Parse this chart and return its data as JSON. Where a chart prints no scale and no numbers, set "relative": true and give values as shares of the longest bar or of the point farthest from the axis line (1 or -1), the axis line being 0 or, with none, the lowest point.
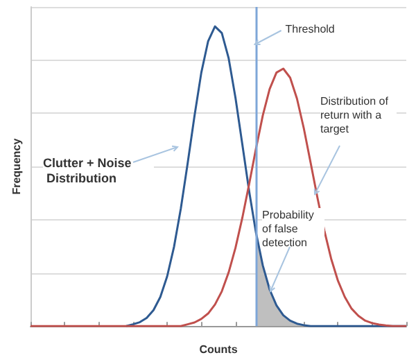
{
  "chart_data": {
    "type": "line",
    "relative": true,
    "xlabel": "Counts",
    "ylabel": "Frequency",
    "categories": [
      null,
      null,
      null,
      null,
      null,
      null,
      null,
      null,
      null,
      null,
      null,
      null,
      null,
      null,
      null,
      null,
      null,
      null,
      null,
      null,
      null,
      null,
      null,
      null,
      null,
      null,
      null,
      null,
      null,
      null,
      null,
      null,
      null,
      null,
      null,
      null,
      null,
      null,
      null,
      null,
      null,
      null,
      null,
      null,
      null,
      null,
      null,
      null,
      null,
      null,
      null,
      null,
      null,
      null,
      null,
      null
    ],
    "series": [
      {
        "color": "#2e5a91",
        "values": [
          null,
          null,
          null,
          null,
          null,
          null,
          null,
          null,
          null,
          null,
          null,
          null,
          null,
          null,
          0,
          0.006,
          0.013,
          0.027,
          0.053,
          0.097,
          0.166,
          0.264,
          0.392,
          0.543,
          0.701,
          0.846,
          0.951,
          1,
          0.978,
          0.894,
          0.762,
          0.607,
          0.45,
          0.312,
          0.202,
          0.122,
          0.069,
          0.036,
          0.018,
          0.008,
          0.003,
          0,
          0,
          0,
          0,
          0,
          0,
          0,
          0,
          0,
          0,
          0,
          0,
          0,
          0,
          0
        ]
      },
      {
        "color": "#c0504d",
        "values": [
          0,
          0,
          0,
          0,
          0,
          0,
          0,
          0,
          0,
          0,
          0,
          0,
          0,
          0,
          0,
          0,
          0,
          0,
          0,
          0,
          0,
          0,
          0,
          0.006,
          0.012,
          0.024,
          0.042,
          0.072,
          0.116,
          0.179,
          0.261,
          0.361,
          0.474,
          0.592,
          0.703,
          0.791,
          0.846,
          0.859,
          0.829,
          0.759,
          0.66,
          0.545,
          0.428,
          0.319,
          0.225,
          0.151,
          0.097,
          0.058,
          0.034,
          0.018,
          0.01,
          0.005,
          0.002,
          0,
          0,
          0
        ]
      },
      {
        "type": "area",
        "color": "#bfbfbf",
        "values": [
          null,
          null,
          null,
          null,
          null,
          null,
          null,
          null,
          null,
          null,
          null,
          null,
          null,
          null,
          null,
          null,
          null,
          null,
          null,
          null,
          null,
          null,
          null,
          null,
          null,
          null,
          null,
          null,
          null,
          null,
          null,
          null,
          null,
          0.312,
          0.202,
          0.122,
          0.069,
          0.036,
          0.018,
          0.008,
          0.003,
          0,
          null,
          null,
          null,
          null,
          null,
          null,
          null,
          null,
          null,
          null,
          null,
          null,
          null,
          null
        ]
      }
    ],
    "annotations": [
      "Threshold",
      "Clutter + Noise Distribution",
      "Distribution of return with a target",
      "Probability of false detection"
    ],
    "grid": "y",
    "marker": "none",
    "line_style": "solid"
  }
}
